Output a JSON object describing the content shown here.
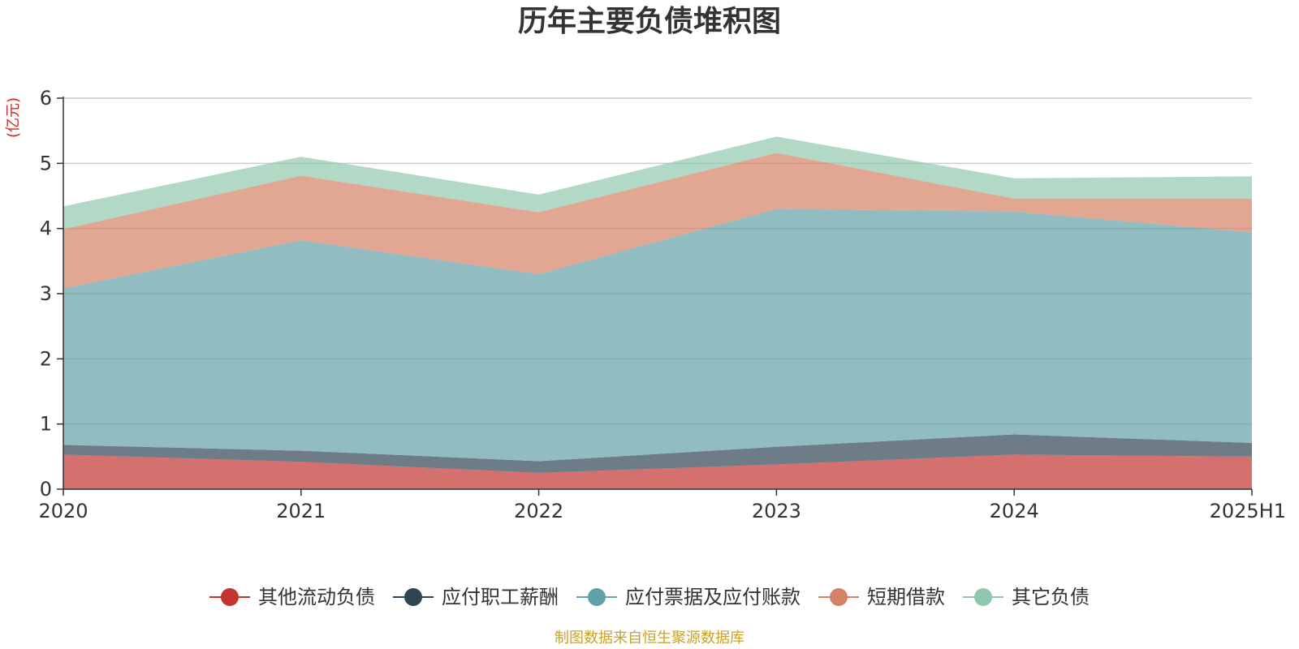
{
  "chart_data": {
    "type": "area",
    "stacked": true,
    "title": "历年主要负债堆积图",
    "unit_label": "(亿元)",
    "categories": [
      "2020",
      "2021",
      "2022",
      "2023",
      "2024",
      "2025H1"
    ],
    "ylim": [
      0,
      6
    ],
    "yticks": [
      "0",
      "1",
      "2",
      "3",
      "4",
      "5",
      "6"
    ],
    "grid": true,
    "legend_position": "bottom",
    "series": [
      {
        "name": "其他流动负债",
        "color": "#c23531",
        "values": [
          0.53,
          0.42,
          0.25,
          0.38,
          0.53,
          0.5
        ]
      },
      {
        "name": "应付职工薪酬",
        "color": "#2f4554",
        "values": [
          0.15,
          0.17,
          0.18,
          0.27,
          0.31,
          0.21
        ]
      },
      {
        "name": "应付票据及应付账款",
        "color": "#61a0a8",
        "values": [
          2.4,
          3.23,
          2.87,
          3.65,
          3.42,
          3.23
        ]
      },
      {
        "name": "短期借款",
        "color": "#d48265",
        "values": [
          0.91,
          0.99,
          0.95,
          0.86,
          0.2,
          0.52
        ]
      },
      {
        "name": "其它负债",
        "color": "#91c7ae",
        "values": [
          0.35,
          0.29,
          0.27,
          0.25,
          0.31,
          0.34
        ]
      }
    ],
    "source": "制图数据来自恒生聚源数据库"
  }
}
